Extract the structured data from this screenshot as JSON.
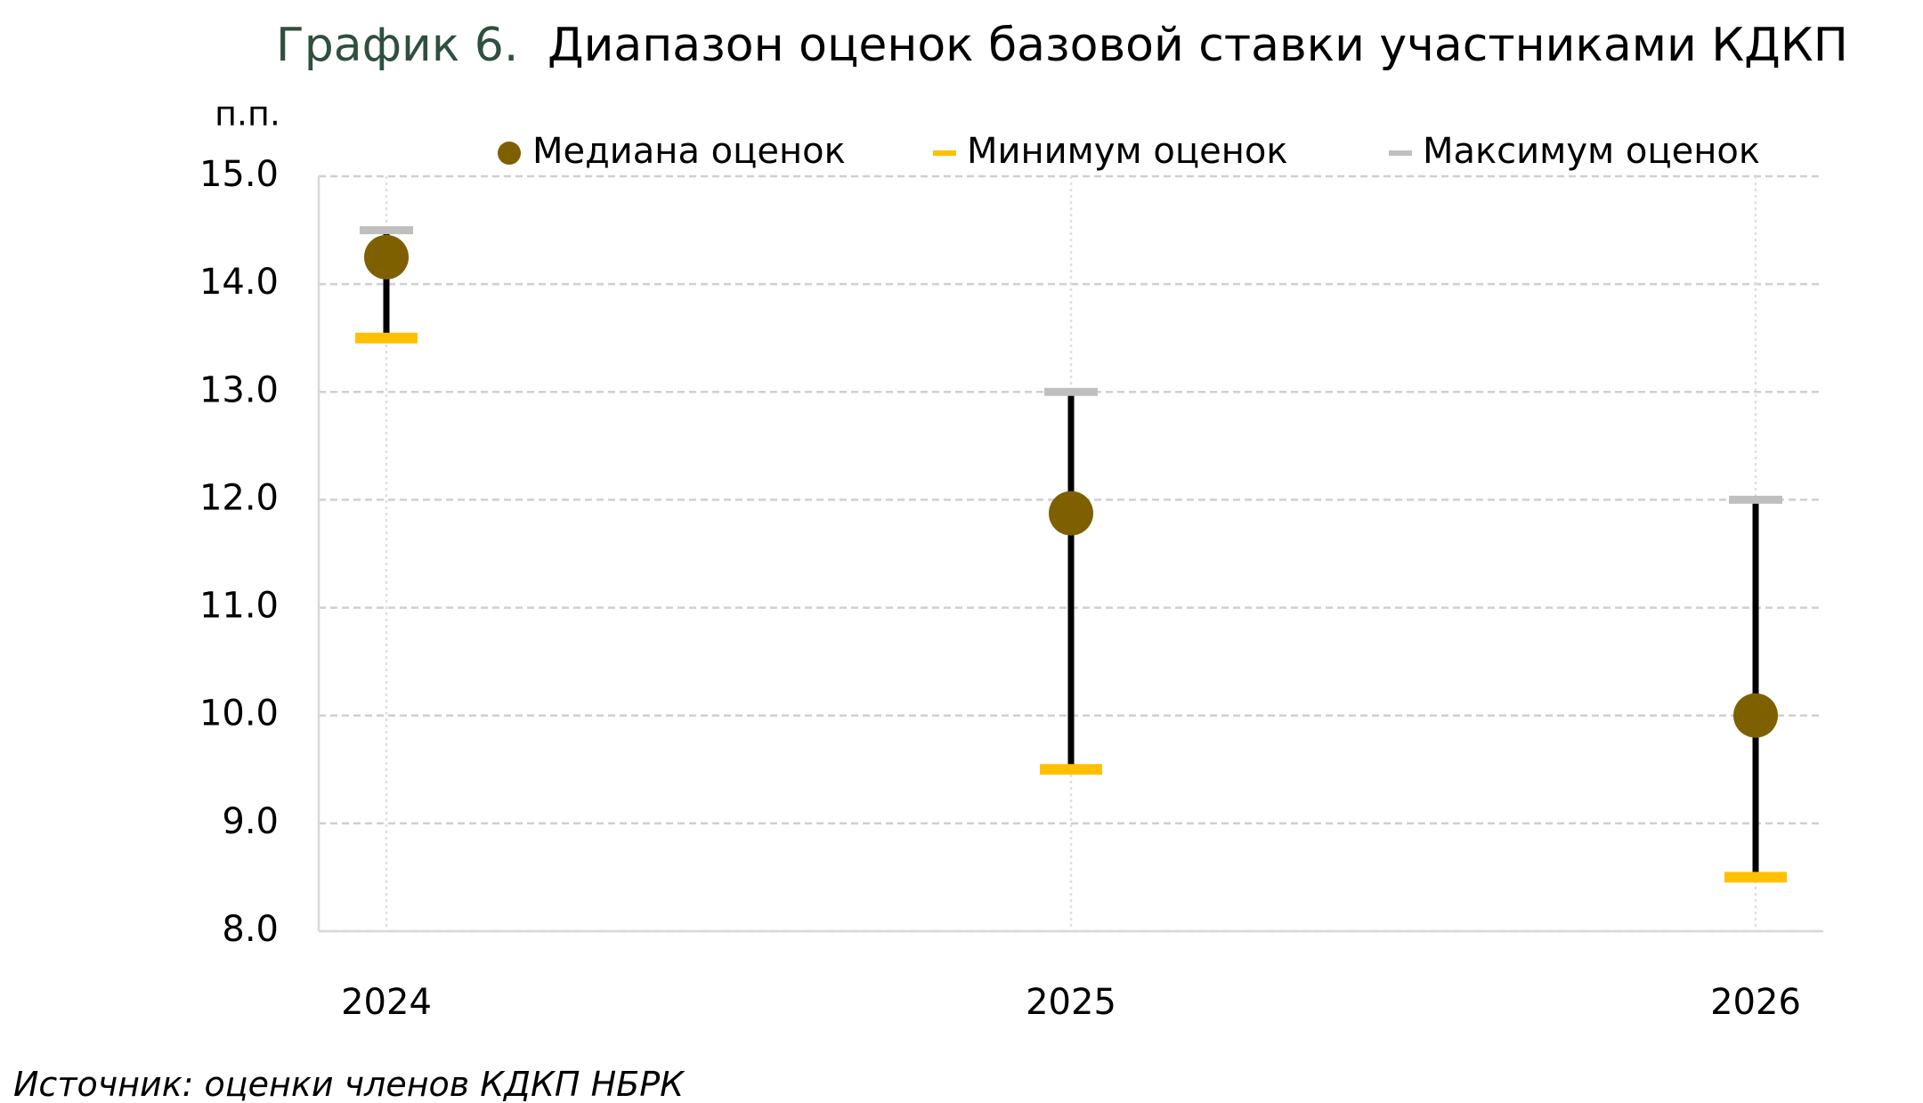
{
  "chart_data": {
    "type": "range",
    "title_label": "График 6.",
    "title": "Диапазон оценок базовой ставки участниками КДКП",
    "y_unit": "п.п.",
    "source": "Источник: оценки членов КДКП НБРК",
    "categories": [
      "2024",
      "2025",
      "2026"
    ],
    "series": [
      {
        "name": "Медиана оценок",
        "color": "#7f6000",
        "values": [
          14.25,
          11.875,
          10.0
        ]
      },
      {
        "name": "Минимум оценок",
        "color": "#ffc000",
        "values": [
          13.5,
          9.5,
          8.5
        ]
      },
      {
        "name": "Максимум оценок",
        "color": "#bfbfbf",
        "values": [
          14.5,
          13.0,
          12.0
        ]
      }
    ],
    "range_color": "#000000",
    "ylim": [
      8,
      15
    ],
    "yticks": [
      {
        "value": 8,
        "label": "8.0"
      },
      {
        "value": 9,
        "label": "9.0"
      },
      {
        "value": 10,
        "label": "10.0"
      },
      {
        "value": 11,
        "label": "11.0"
      },
      {
        "value": 12,
        "label": "12.0"
      },
      {
        "value": 13,
        "label": "13.0"
      },
      {
        "value": 14,
        "label": "14.0"
      },
      {
        "value": 15,
        "label": "15.0"
      }
    ],
    "grid": true,
    "legend_position": "top"
  }
}
